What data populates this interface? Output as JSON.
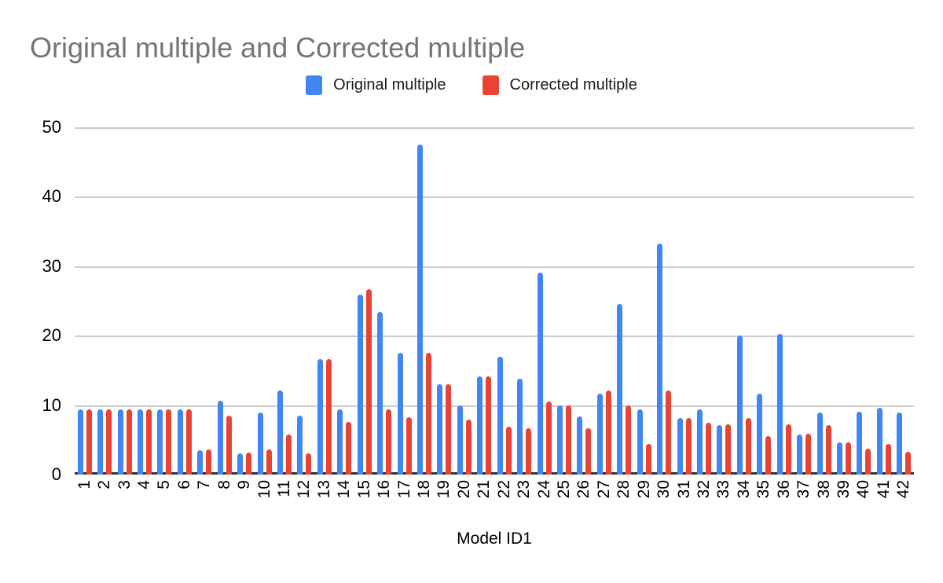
{
  "title": "Original multiple and Corrected multiple",
  "legend": {
    "items": [
      {
        "label": "Original multiple",
        "color": "#4285F4"
      },
      {
        "label": "Corrected multiple",
        "color": "#EA4335"
      }
    ]
  },
  "colors": {
    "title_text": "#757575",
    "axis_text": "#000000",
    "gridline": "#cccccc",
    "baseline": "#333333",
    "background": "#ffffff",
    "series_blue": "#4285F4",
    "series_red": "#EA4335"
  },
  "chart_data": {
    "type": "bar",
    "title": "Original multiple and Corrected multiple",
    "xlabel": "Model ID1",
    "ylabel": "",
    "ylim": [
      0,
      50
    ],
    "yticks": [
      0,
      10,
      20,
      30,
      40,
      50
    ],
    "grid": true,
    "legend_position": "top",
    "categories": [
      "1",
      "2",
      "3",
      "4",
      "5",
      "6",
      "7",
      "8",
      "9",
      "10",
      "11",
      "12",
      "13",
      "14",
      "15",
      "16",
      "17",
      "18",
      "19",
      "20",
      "21",
      "22",
      "23",
      "24",
      "25",
      "26",
      "27",
      "28",
      "29",
      "30",
      "31",
      "32",
      "33",
      "34",
      "35",
      "36",
      "37",
      "38",
      "39",
      "40",
      "41",
      "42"
    ],
    "series": [
      {
        "name": "Original multiple",
        "color": "#4285F4",
        "values": [
          9.4,
          9.4,
          9.4,
          9.4,
          9.4,
          9.4,
          3.5,
          10.6,
          3.1,
          8.9,
          12.1,
          8.5,
          16.6,
          9.4,
          25.9,
          23.4,
          17.5,
          47.5,
          13.0,
          10.0,
          14.1,
          17.0,
          13.8,
          29.1,
          10.0,
          8.4,
          11.7,
          24.6,
          9.4,
          33.3,
          8.1,
          9.4,
          7.1,
          20.0,
          11.7,
          20.3,
          5.8,
          8.9,
          4.6,
          9.1,
          9.6,
          8.9
        ]
      },
      {
        "name": "Corrected multiple",
        "color": "#EA4335",
        "values": [
          9.4,
          9.4,
          9.4,
          9.4,
          9.4,
          9.4,
          3.6,
          8.5,
          3.2,
          3.6,
          5.8,
          3.1,
          16.6,
          7.6,
          26.7,
          9.4,
          8.3,
          17.5,
          13.0,
          7.9,
          14.1,
          6.9,
          6.7,
          10.5,
          10.0,
          6.7,
          12.1,
          10.0,
          4.4,
          12.1,
          8.1,
          7.5,
          7.3,
          8.1,
          5.6,
          7.3,
          5.9,
          7.1,
          4.7,
          3.7,
          4.4,
          3.3
        ]
      }
    ]
  }
}
